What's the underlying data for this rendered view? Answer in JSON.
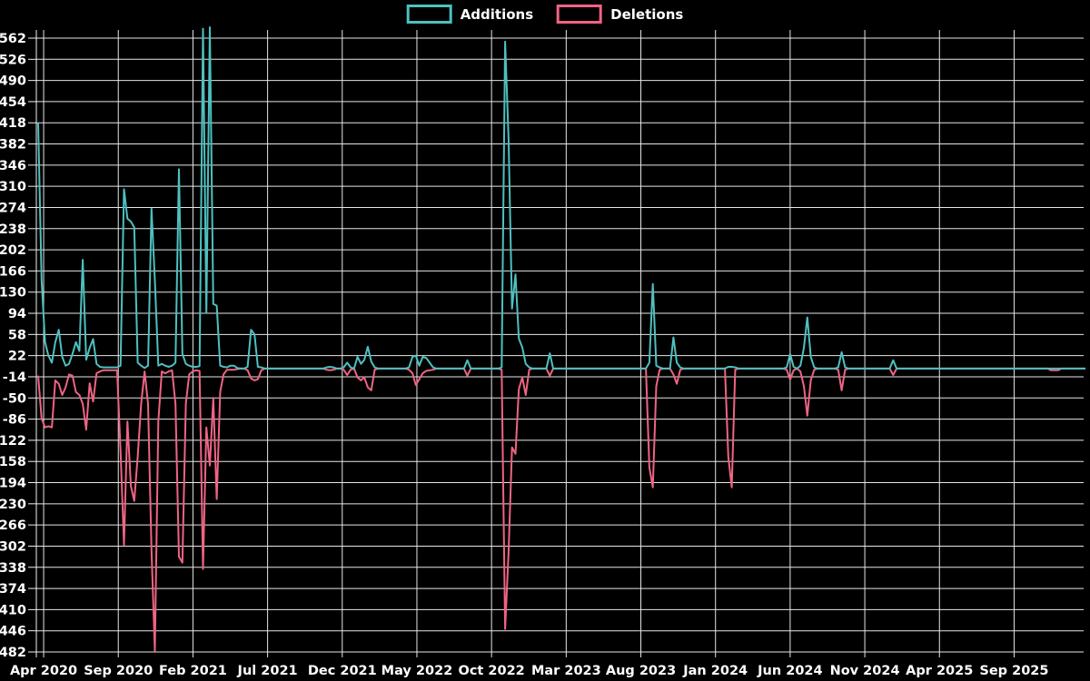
{
  "legend": {
    "items": [
      {
        "label": "Additions",
        "color": "#4ec0c0"
      },
      {
        "label": "Deletions",
        "color": "#ef6484"
      }
    ]
  },
  "chart_data": {
    "type": "line",
    "title": "",
    "xlabel": "",
    "ylabel": "",
    "background": "#000000",
    "grid": true,
    "legend_position": "top-center",
    "ylim": [
      -482,
      562
    ],
    "y_ticks": [
      562,
      526,
      490,
      454,
      418,
      382,
      346,
      310,
      274,
      238,
      202,
      166,
      130,
      94,
      58,
      22,
      -14,
      -50,
      -86,
      -122,
      -158,
      -194,
      -230,
      -266,
      -302,
      -338,
      -374,
      -410,
      -446,
      -482
    ],
    "x_tick_labels": [
      "Apr 2020",
      "Sep 2020",
      "Feb 2021",
      "Jul 2021",
      "Dec 2021",
      "May 2022",
      "Oct 2022",
      "Mar 2023",
      "Aug 2023",
      "Jan 2024",
      "Jun 2024",
      "Nov 2024",
      "Apr 2025",
      "Sep 2025"
    ],
    "x_unit": "week",
    "total_weeks": 306,
    "baseline": 0,
    "series": [
      {
        "name": "Additions",
        "color": "#4ec0c0",
        "value_index": 1
      },
      {
        "name": "Deletions",
        "color": "#ef6484",
        "value_index": 2
      }
    ],
    "points": [
      [
        0,
        418,
        -12
      ],
      [
        1,
        150,
        -85
      ],
      [
        2,
        45,
        -100
      ],
      [
        3,
        22,
        -98
      ],
      [
        4,
        10,
        -100
      ],
      [
        5,
        45,
        -20
      ],
      [
        6,
        66,
        -26
      ],
      [
        7,
        20,
        -45
      ],
      [
        8,
        5,
        -32
      ],
      [
        9,
        8,
        -10
      ],
      [
        10,
        25,
        -12
      ],
      [
        11,
        45,
        -40
      ],
      [
        12,
        30,
        -45
      ],
      [
        13,
        185,
        -60
      ],
      [
        14,
        15,
        -104
      ],
      [
        15,
        35,
        -25
      ],
      [
        16,
        50,
        -56
      ],
      [
        17,
        8,
        -8
      ],
      [
        18,
        3,
        -5
      ],
      [
        19,
        2,
        -3
      ],
      [
        20,
        2,
        -3
      ],
      [
        21,
        2,
        -3
      ],
      [
        22,
        2,
        -3
      ],
      [
        23,
        2,
        -3
      ],
      [
        24,
        5,
        -140
      ],
      [
        25,
        305,
        -300
      ],
      [
        26,
        255,
        -90
      ],
      [
        27,
        250,
        -200
      ],
      [
        28,
        240,
        -225
      ],
      [
        29,
        10,
        -150
      ],
      [
        30,
        5,
        -60
      ],
      [
        31,
        1,
        -5
      ],
      [
        32,
        5,
        -60
      ],
      [
        33,
        272,
        -310
      ],
      [
        34,
        150,
        -480
      ],
      [
        35,
        5,
        -90
      ],
      [
        36,
        8,
        -5
      ],
      [
        37,
        5,
        -8
      ],
      [
        38,
        3,
        -5
      ],
      [
        39,
        5,
        -3
      ],
      [
        40,
        10,
        -60
      ],
      [
        41,
        339,
        -320
      ],
      [
        42,
        25,
        -330
      ],
      [
        43,
        8,
        -60
      ],
      [
        44,
        5,
        -10
      ],
      [
        45,
        3,
        -5
      ],
      [
        46,
        3,
        -3
      ],
      [
        47,
        4,
        -4
      ],
      [
        48,
        578,
        -341
      ],
      [
        49,
        95,
        -100
      ],
      [
        50,
        588,
        -165
      ],
      [
        51,
        110,
        -50
      ],
      [
        52,
        107,
        -222
      ],
      [
        53,
        5,
        -40
      ],
      [
        54,
        3,
        -10
      ],
      [
        55,
        2,
        -2
      ],
      [
        56,
        5,
        -2
      ],
      [
        57,
        5,
        -2
      ],
      [
        58,
        1,
        -1
      ],
      [
        61,
        3,
        -3
      ],
      [
        62,
        66,
        -17
      ],
      [
        63,
        58,
        -20
      ],
      [
        64,
        3,
        -18
      ],
      [
        65,
        2,
        -3
      ],
      [
        84,
        2,
        -2
      ],
      [
        85,
        3,
        -3
      ],
      [
        86,
        2,
        -2
      ],
      [
        89,
        2,
        -2
      ],
      [
        90,
        10,
        -11
      ],
      [
        91,
        2,
        -2
      ],
      [
        93,
        20,
        -15
      ],
      [
        94,
        8,
        -20
      ],
      [
        95,
        15,
        -15
      ],
      [
        96,
        37,
        -32
      ],
      [
        97,
        12,
        -37
      ],
      [
        98,
        2,
        -2
      ],
      [
        108,
        2,
        -2
      ],
      [
        109,
        20,
        -8
      ],
      [
        110,
        22,
        -28
      ],
      [
        111,
        5,
        -18
      ],
      [
        112,
        20,
        -8
      ],
      [
        113,
        18,
        -4
      ],
      [
        114,
        10,
        -3
      ],
      [
        115,
        2,
        -2
      ],
      [
        125,
        14,
        -12
      ],
      [
        135,
        2,
        -2
      ],
      [
        136,
        556,
        -443
      ],
      [
        137,
        390,
        -312
      ],
      [
        138,
        102,
        -134
      ],
      [
        139,
        160,
        -145
      ],
      [
        140,
        51,
        -35
      ],
      [
        141,
        36,
        -15
      ],
      [
        142,
        8,
        -45
      ],
      [
        143,
        2,
        -2
      ],
      [
        149,
        26,
        -12
      ],
      [
        178,
        10,
        -168
      ],
      [
        179,
        144,
        -202
      ],
      [
        180,
        5,
        -30
      ],
      [
        181,
        2,
        -2
      ],
      [
        185,
        53,
        -10
      ],
      [
        186,
        10,
        -26
      ],
      [
        187,
        2,
        -2
      ],
      [
        201,
        3,
        -150
      ],
      [
        202,
        3,
        -202
      ],
      [
        203,
        2,
        -2
      ],
      [
        218,
        2,
        -2
      ],
      [
        219,
        25,
        -19
      ],
      [
        220,
        3,
        -3
      ],
      [
        222,
        5,
        -5
      ],
      [
        223,
        35,
        -30
      ],
      [
        224,
        87,
        -80
      ],
      [
        225,
        20,
        -20
      ],
      [
        226,
        2,
        -2
      ],
      [
        233,
        2,
        -2
      ],
      [
        234,
        28,
        -37
      ],
      [
        235,
        2,
        -2
      ],
      [
        249,
        14,
        -11
      ],
      [
        295,
        0,
        -3
      ],
      [
        296,
        0,
        -3
      ],
      [
        297,
        0,
        -3
      ]
    ]
  }
}
